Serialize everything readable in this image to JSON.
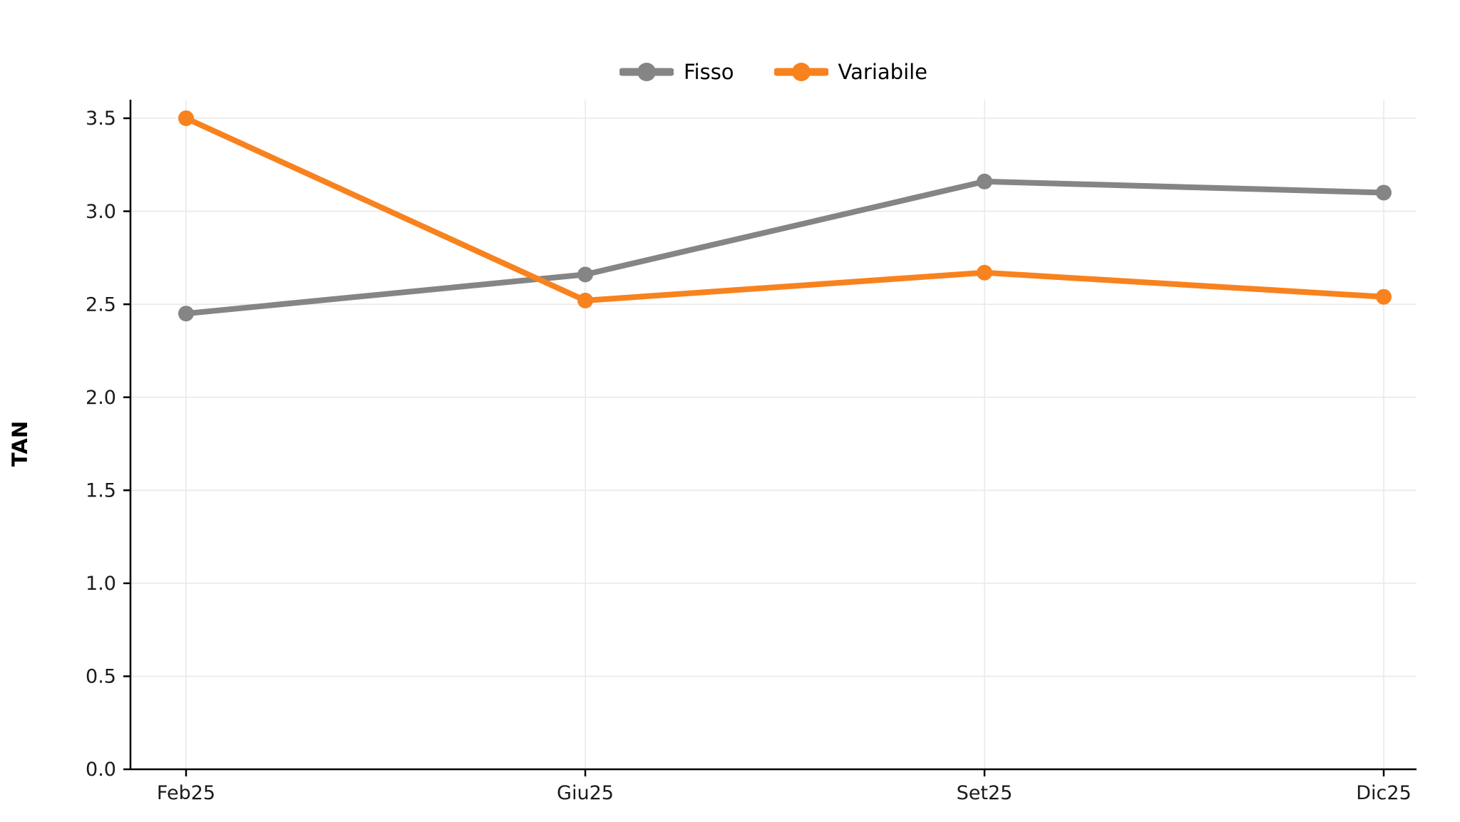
{
  "chart_data": {
    "type": "line",
    "categories": [
      "Feb25",
      "Giu25",
      "Set25",
      "Dic25"
    ],
    "series": [
      {
        "name": "Fisso",
        "color": "#858585",
        "values": [
          2.45,
          2.66,
          3.16,
          3.1
        ]
      },
      {
        "name": "Variabile",
        "color": "#F8821E",
        "values": [
          3.5,
          2.52,
          2.67,
          2.54
        ]
      }
    ],
    "title": "",
    "xlabel": "",
    "ylabel": "TAN",
    "ylim": [
      0.0,
      3.5
    ],
    "yticks": [
      0.0,
      0.5,
      1.0,
      1.5,
      2.0,
      2.5,
      3.0,
      3.5
    ],
    "ytick_labels": [
      "0.0",
      "0.5",
      "1.0",
      "1.5",
      "2.0",
      "2.5",
      "3.0",
      "3.5"
    ],
    "grid": true,
    "legend_position": "top-center",
    "colors": {
      "grid": "#E9E9E9",
      "spine": "#000000",
      "tick_label": "#1A1A1A"
    }
  }
}
